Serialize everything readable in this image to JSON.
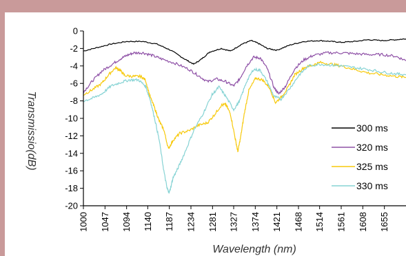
{
  "chart_data": {
    "type": "line",
    "title": "",
    "xlabel": "Wavelength (nm)",
    "ylabel": "Transmissio(dB)",
    "xlim": [
      1000,
      1702
    ],
    "ylim": [
      -20,
      0
    ],
    "x_ticks": [
      "1000",
      "1047",
      "1094",
      "1140",
      "1187",
      "1234",
      "1281",
      "1327",
      "1374",
      "1421",
      "1468",
      "1514",
      "1561",
      "1608",
      "1655"
    ],
    "y_ticks": [
      "0",
      "-2",
      "-4",
      "-6",
      "-8",
      "-10",
      "-12",
      "-14",
      "-16",
      "-18",
      "-20"
    ],
    "legend_position": "right",
    "grid": false,
    "series": [
      {
        "name": "300 ms",
        "color": "#000000",
        "points": [
          [
            1000,
            -2.3
          ],
          [
            1030,
            -1.9
          ],
          [
            1060,
            -1.5
          ],
          [
            1094,
            -1.2
          ],
          [
            1130,
            -1.2
          ],
          [
            1160,
            -1.5
          ],
          [
            1190,
            -2.2
          ],
          [
            1220,
            -3.2
          ],
          [
            1240,
            -3.8
          ],
          [
            1255,
            -3.3
          ],
          [
            1275,
            -2.4
          ],
          [
            1300,
            -2.0
          ],
          [
            1320,
            -2.3
          ],
          [
            1345,
            -1.5
          ],
          [
            1365,
            -1.1
          ],
          [
            1380,
            -1.4
          ],
          [
            1400,
            -2.0
          ],
          [
            1421,
            -2.2
          ],
          [
            1450,
            -1.6
          ],
          [
            1480,
            -1.2
          ],
          [
            1514,
            -1.1
          ],
          [
            1540,
            -1.2
          ],
          [
            1561,
            -1.3
          ],
          [
            1590,
            -1.2
          ],
          [
            1620,
            -1.0
          ],
          [
            1650,
            -1.1
          ],
          [
            1680,
            -1.0
          ],
          [
            1702,
            -0.9
          ]
        ]
      },
      {
        "name": "320 ms",
        "color": "#8e50a6",
        "points": [
          [
            1000,
            -7.0
          ],
          [
            1020,
            -5.7
          ],
          [
            1040,
            -4.6
          ],
          [
            1060,
            -3.9
          ],
          [
            1080,
            -3.2
          ],
          [
            1094,
            -2.8
          ],
          [
            1110,
            -2.5
          ],
          [
            1130,
            -2.5
          ],
          [
            1150,
            -2.8
          ],
          [
            1170,
            -3.2
          ],
          [
            1200,
            -3.7
          ],
          [
            1230,
            -4.4
          ],
          [
            1250,
            -5.1
          ],
          [
            1270,
            -5.8
          ],
          [
            1290,
            -5.5
          ],
          [
            1310,
            -5.8
          ],
          [
            1327,
            -6.3
          ],
          [
            1340,
            -5.5
          ],
          [
            1355,
            -4.0
          ],
          [
            1370,
            -3.0
          ],
          [
            1385,
            -3.1
          ],
          [
            1400,
            -4.3
          ],
          [
            1415,
            -6.5
          ],
          [
            1425,
            -7.2
          ],
          [
            1440,
            -6.3
          ],
          [
            1460,
            -4.3
          ],
          [
            1480,
            -3.3
          ],
          [
            1500,
            -2.8
          ],
          [
            1530,
            -2.5
          ],
          [
            1561,
            -2.5
          ],
          [
            1590,
            -2.6
          ],
          [
            1620,
            -2.7
          ],
          [
            1650,
            -2.7
          ],
          [
            1680,
            -2.9
          ],
          [
            1702,
            -3.4
          ]
        ]
      },
      {
        "name": "325 ms",
        "color": "#f7c90b",
        "points": [
          [
            1000,
            -7.3
          ],
          [
            1020,
            -6.7
          ],
          [
            1040,
            -6.0
          ],
          [
            1055,
            -5.0
          ],
          [
            1070,
            -4.2
          ],
          [
            1080,
            -4.5
          ],
          [
            1090,
            -5.1
          ],
          [
            1110,
            -5.2
          ],
          [
            1125,
            -5.2
          ],
          [
            1135,
            -5.6
          ],
          [
            1145,
            -7.5
          ],
          [
            1155,
            -8.8
          ],
          [
            1165,
            -10.3
          ],
          [
            1175,
            -11.3
          ],
          [
            1185,
            -13.5
          ],
          [
            1195,
            -12.5
          ],
          [
            1210,
            -11.7
          ],
          [
            1230,
            -11.4
          ],
          [
            1250,
            -10.8
          ],
          [
            1270,
            -10.5
          ],
          [
            1285,
            -9.6
          ],
          [
            1300,
            -8.5
          ],
          [
            1310,
            -8.4
          ],
          [
            1320,
            -9.5
          ],
          [
            1330,
            -12.2
          ],
          [
            1336,
            -13.8
          ],
          [
            1342,
            -12.2
          ],
          [
            1350,
            -9.5
          ],
          [
            1360,
            -6.8
          ],
          [
            1375,
            -5.4
          ],
          [
            1390,
            -5.6
          ],
          [
            1405,
            -6.5
          ],
          [
            1418,
            -8.2
          ],
          [
            1430,
            -7.6
          ],
          [
            1445,
            -6.5
          ],
          [
            1460,
            -5.0
          ],
          [
            1480,
            -4.2
          ],
          [
            1500,
            -3.9
          ],
          [
            1514,
            -3.6
          ],
          [
            1540,
            -3.8
          ],
          [
            1561,
            -4.0
          ],
          [
            1590,
            -4.4
          ],
          [
            1620,
            -4.8
          ],
          [
            1650,
            -5.0
          ],
          [
            1680,
            -5.2
          ],
          [
            1702,
            -5.3
          ]
        ]
      },
      {
        "name": "330 ms",
        "color": "#86d3d4",
        "points": [
          [
            1000,
            -8.0
          ],
          [
            1020,
            -7.7
          ],
          [
            1040,
            -7.2
          ],
          [
            1060,
            -6.3
          ],
          [
            1080,
            -5.9
          ],
          [
            1100,
            -5.6
          ],
          [
            1120,
            -5.6
          ],
          [
            1135,
            -6.3
          ],
          [
            1145,
            -7.8
          ],
          [
            1155,
            -10.0
          ],
          [
            1165,
            -12.5
          ],
          [
            1175,
            -16.0
          ],
          [
            1182,
            -18.0
          ],
          [
            1187,
            -18.5
          ],
          [
            1195,
            -16.8
          ],
          [
            1205,
            -15.8
          ],
          [
            1220,
            -14.0
          ],
          [
            1240,
            -11.4
          ],
          [
            1260,
            -9.5
          ],
          [
            1280,
            -7.3
          ],
          [
            1295,
            -6.4
          ],
          [
            1310,
            -7.5
          ],
          [
            1327,
            -9.0
          ],
          [
            1340,
            -8.0
          ],
          [
            1355,
            -5.8
          ],
          [
            1370,
            -4.4
          ],
          [
            1385,
            -4.5
          ],
          [
            1400,
            -5.8
          ],
          [
            1415,
            -7.5
          ],
          [
            1430,
            -7.8
          ],
          [
            1450,
            -6.5
          ],
          [
            1470,
            -5.0
          ],
          [
            1490,
            -4.0
          ],
          [
            1514,
            -3.8
          ],
          [
            1540,
            -3.9
          ],
          [
            1561,
            -4.0
          ],
          [
            1590,
            -4.2
          ],
          [
            1620,
            -4.4
          ],
          [
            1650,
            -4.7
          ],
          [
            1680,
            -4.9
          ],
          [
            1702,
            -5.0
          ]
        ]
      }
    ]
  }
}
